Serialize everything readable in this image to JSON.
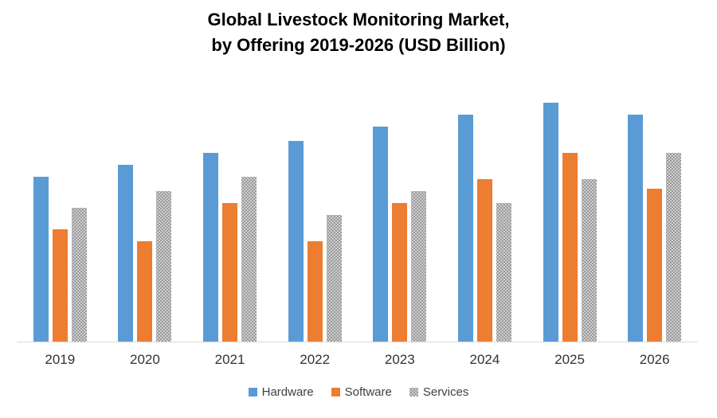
{
  "title": {
    "line1": "Global Livestock Monitoring Market,",
    "line2": "by Offering 2019-2026 (USD Billion)"
  },
  "chart_data": {
    "type": "bar",
    "title": "Global Livestock Monitoring Market, by Offering 2019-2026 (USD Billion)",
    "units": "USD Billion",
    "categories": [
      "2019",
      "2020",
      "2021",
      "2022",
      "2023",
      "2024",
      "2025",
      "2026"
    ],
    "series": [
      {
        "name": "Hardware",
        "color": "#5B9BD5",
        "pattern": false,
        "values": [
          6.9,
          7.4,
          7.9,
          8.4,
          9.0,
          9.5,
          10.0,
          9.5
        ]
      },
      {
        "name": "Software",
        "color": "#ED7D31",
        "pattern": false,
        "values": [
          4.7,
          4.2,
          5.8,
          4.2,
          5.8,
          6.8,
          7.9,
          6.4
        ]
      },
      {
        "name": "Services",
        "color": "#A5A5A5",
        "pattern": true,
        "values": [
          5.6,
          6.3,
          6.9,
          5.3,
          6.3,
          5.8,
          6.8,
          7.9
        ]
      }
    ],
    "xlabel": "",
    "ylabel": "",
    "ylim": [
      0,
      11
    ],
    "y_axis_visible": false,
    "gridlines": false,
    "legend_position": "bottom"
  },
  "colors": {
    "hardware": "#5B9BD5",
    "software": "#ED7D31",
    "services": "#A5A5A5",
    "axis_line": "#B7B7B7",
    "background": "#FFFFFF",
    "title_text": "#000000",
    "axis_labels": "#333333",
    "legend_text": "#404040"
  }
}
